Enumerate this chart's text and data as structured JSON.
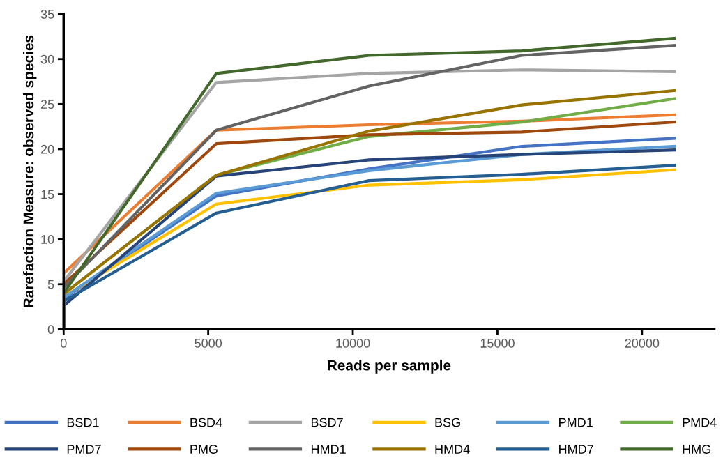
{
  "chart_data": {
    "type": "line",
    "xlabel": "Reads per sample",
    "ylabel": "Rarefaction Measure: observed species",
    "x": [
      0,
      0,
      5280,
      10560,
      15840,
      21120
    ],
    "xlim": [
      0,
      22500
    ],
    "xticks": [
      0,
      5000,
      10000,
      15000,
      20000
    ],
    "ylim": [
      0,
      35
    ],
    "yticks": [
      0,
      5,
      10,
      15,
      20,
      25,
      30,
      35
    ],
    "grid": false,
    "legend": "bottom",
    "marker": "none",
    "line_style": "solid",
    "series": [
      {
        "name": "BSD1",
        "color": "#4472c4",
        "values": [
          0,
          3.4,
          14.8,
          17.8,
          20.3,
          21.2
        ]
      },
      {
        "name": "BSD4",
        "color": "#ed7d31",
        "values": [
          0,
          6.2,
          22.1,
          22.7,
          23.1,
          23.8
        ]
      },
      {
        "name": "BSD7",
        "color": "#a5a5a5",
        "values": [
          0,
          5.3,
          27.4,
          28.4,
          28.8,
          28.6
        ]
      },
      {
        "name": "BSG",
        "color": "#ffc000",
        "values": [
          0,
          3.6,
          13.9,
          16.0,
          16.6,
          17.7
        ]
      },
      {
        "name": "PMD1",
        "color": "#5b9bd5",
        "values": [
          0,
          3.5,
          15.1,
          17.6,
          19.4,
          20.3
        ]
      },
      {
        "name": "PMD4",
        "color": "#70ad47",
        "values": [
          0,
          3.9,
          17.1,
          21.4,
          23.0,
          25.6
        ]
      },
      {
        "name": "PMD7",
        "color": "#264478",
        "values": [
          0,
          2.6,
          17.0,
          18.8,
          19.4,
          19.9
        ]
      },
      {
        "name": "PMG",
        "color": "#9e480e",
        "values": [
          0,
          5.0,
          20.6,
          21.6,
          21.9,
          23.0
        ]
      },
      {
        "name": "HMD1",
        "color": "#636363",
        "values": [
          0,
          4.6,
          22.1,
          27.0,
          30.4,
          31.5
        ]
      },
      {
        "name": "HMD4",
        "color": "#997300",
        "values": [
          0,
          3.9,
          17.1,
          22.0,
          24.9,
          26.5
        ]
      },
      {
        "name": "HMD7",
        "color": "#255e91",
        "values": [
          0,
          3.1,
          12.9,
          16.5,
          17.2,
          18.2
        ]
      },
      {
        "name": "HMG",
        "color": "#43682b",
        "values": [
          0,
          4.0,
          28.4,
          30.4,
          30.9,
          32.3
        ]
      }
    ]
  }
}
